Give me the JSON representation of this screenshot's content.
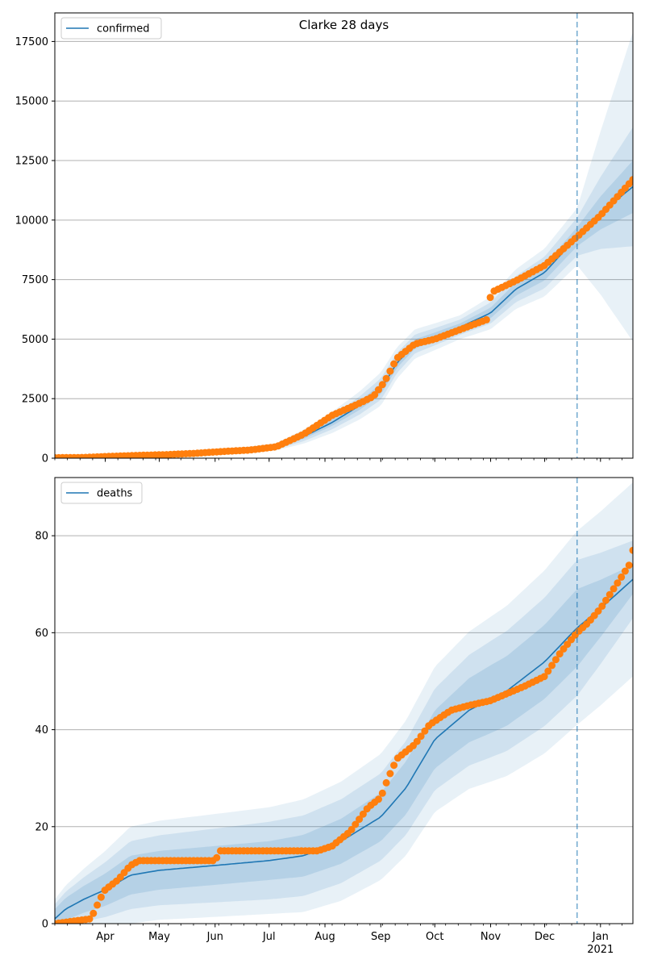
{
  "chart_data": [
    {
      "type": "line",
      "title": "Clarke 28 days",
      "xlabel": "",
      "ylabel": "",
      "legend": {
        "entries": [
          "confirmed"
        ],
        "placement": "top-left"
      },
      "grid": "horizontal",
      "ylim": [
        0,
        18700
      ],
      "yticks": [
        0,
        2500,
        5000,
        7500,
        10000,
        12500,
        15000,
        17500
      ],
      "ytick_labels": [
        "0",
        "2500",
        "5000",
        "7500",
        "10000",
        "12500",
        "15000",
        "17500"
      ],
      "xlim": [
        "2020-03-04",
        "2021-01-19"
      ],
      "forecast_start": "2020-12-19",
      "series": [
        {
          "name": "confirmed",
          "kind": "model line",
          "x": [
            "2020-03-04",
            "2020-03-20",
            "2020-04-05",
            "2020-04-20",
            "2020-05-05",
            "2020-05-20",
            "2020-06-05",
            "2020-06-20",
            "2020-07-05",
            "2020-07-20",
            "2020-08-05",
            "2020-08-20",
            "2020-09-01",
            "2020-09-10",
            "2020-09-20",
            "2020-10-01",
            "2020-10-15",
            "2020-11-01",
            "2020-11-15",
            "2020-12-01",
            "2020-12-19",
            "2021-01-01",
            "2021-01-19"
          ],
          "y": [
            0,
            20,
            60,
            110,
            160,
            210,
            280,
            350,
            480,
            900,
            1500,
            2200,
            2900,
            4000,
            4800,
            5100,
            5500,
            6100,
            7100,
            7800,
            9300,
            10300,
            11400
          ]
        },
        {
          "name": "",
          "kind": "observed points",
          "x": [
            "2020-03-04",
            "2020-03-20",
            "2020-04-05",
            "2020-04-20",
            "2020-05-05",
            "2020-05-20",
            "2020-06-05",
            "2020-06-20",
            "2020-07-05",
            "2020-07-20",
            "2020-08-05",
            "2020-08-20",
            "2020-08-28",
            "2020-09-03",
            "2020-09-10",
            "2020-09-20",
            "2020-10-01",
            "2020-10-15",
            "2020-10-31",
            "2020-11-01",
            "2020-11-15",
            "2020-12-01",
            "2020-12-19",
            "2021-01-01",
            "2021-01-19"
          ],
          "y": [
            20,
            30,
            80,
            120,
            150,
            200,
            280,
            340,
            480,
            1000,
            1800,
            2300,
            2600,
            3200,
            4200,
            4800,
            5000,
            5400,
            5850,
            6950,
            7450,
            8100,
            9300,
            10200,
            11700
          ]
        }
      ],
      "band_half_widths": [
        {
          "x": [
            "2020-03-04",
            "2020-07-05",
            "2020-09-01",
            "2020-10-15",
            "2020-12-19",
            "2021-01-19"
          ],
          "w": [
            40,
            150,
            700,
            500,
            1200,
            6500
          ]
        },
        {
          "x": [
            "2020-03-04",
            "2020-07-05",
            "2020-09-01",
            "2020-10-15",
            "2020-12-19",
            "2021-01-19"
          ],
          "w": [
            25,
            100,
            450,
            320,
            800,
            2500
          ]
        },
        {
          "x": [
            "2020-03-04",
            "2020-07-05",
            "2020-09-01",
            "2020-10-15",
            "2020-12-19",
            "2021-01-19"
          ],
          "w": [
            12,
            50,
            220,
            160,
            400,
            1100
          ]
        }
      ]
    },
    {
      "type": "line",
      "title": "",
      "xlabel": "",
      "ylabel": "",
      "legend": {
        "entries": [
          "deaths"
        ],
        "placement": "top-left"
      },
      "grid": "horizontal",
      "ylim": [
        0,
        92
      ],
      "yticks": [
        0,
        20,
        40,
        60,
        80
      ],
      "ytick_labels": [
        "0",
        "20",
        "40",
        "60",
        "80"
      ],
      "xlim": [
        "2020-03-04",
        "2021-01-19"
      ],
      "forecast_start": "2020-12-19",
      "xtick_labels": [
        {
          "date": "2020-04-01",
          "label": "Apr"
        },
        {
          "date": "2020-05-01",
          "label": "May"
        },
        {
          "date": "2020-06-01",
          "label": "Jun"
        },
        {
          "date": "2020-07-01",
          "label": "Jul"
        },
        {
          "date": "2020-08-01",
          "label": "Aug"
        },
        {
          "date": "2020-09-01",
          "label": "Sep"
        },
        {
          "date": "2020-10-01",
          "label": "Oct"
        },
        {
          "date": "2020-11-01",
          "label": "Nov"
        },
        {
          "date": "2020-12-01",
          "label": "Dec"
        },
        {
          "date": "2021-01-01",
          "label": "Jan\n2021"
        }
      ],
      "series": [
        {
          "name": "deaths",
          "kind": "model line",
          "x": [
            "2020-03-04",
            "2020-03-10",
            "2020-03-20",
            "2020-04-01",
            "2020-04-15",
            "2020-05-01",
            "2020-06-01",
            "2020-07-01",
            "2020-07-20",
            "2020-08-10",
            "2020-09-01",
            "2020-09-15",
            "2020-10-01",
            "2020-10-20",
            "2020-11-10",
            "2020-12-01",
            "2020-12-19",
            "2021-01-01",
            "2021-01-19"
          ],
          "y": [
            1,
            3,
            5,
            7,
            10,
            11,
            12,
            13,
            14,
            17,
            22,
            28,
            38,
            44,
            48,
            54,
            61,
            65,
            71
          ]
        },
        {
          "name": "",
          "kind": "observed points",
          "x": [
            "2020-03-04",
            "2020-03-24",
            "2020-03-29",
            "2020-04-01",
            "2020-04-08",
            "2020-04-15",
            "2020-04-20",
            "2020-05-15",
            "2020-06-01",
            "2020-06-04",
            "2020-06-20",
            "2020-07-10",
            "2020-07-28",
            "2020-08-05",
            "2020-08-15",
            "2020-08-25",
            "2020-09-01",
            "2020-09-05",
            "2020-09-10",
            "2020-09-20",
            "2020-09-28",
            "2020-10-10",
            "2020-10-20",
            "2020-11-01",
            "2020-11-20",
            "2020-12-01",
            "2020-12-10",
            "2020-12-19",
            "2020-12-25",
            "2021-01-01",
            "2021-01-10",
            "2021-01-17",
            "2021-01-19"
          ],
          "y": [
            0,
            1,
            5,
            7,
            9,
            12,
            13,
            13,
            13,
            15,
            15,
            15,
            15,
            16,
            19,
            24,
            26,
            30,
            34,
            37,
            41,
            44,
            45,
            46,
            49,
            51,
            56,
            60,
            62,
            65,
            70,
            74,
            77
          ]
        }
      ],
      "band_half_widths": [
        {
          "x": [
            "2020-03-04",
            "2020-04-15",
            "2020-07-01",
            "2020-09-01",
            "2020-11-01",
            "2020-12-19",
            "2021-01-19"
          ],
          "w": [
            4,
            10,
            11,
            13,
            17,
            20,
            20
          ]
        },
        {
          "x": [
            "2020-03-04",
            "2020-04-15",
            "2020-07-01",
            "2020-09-01",
            "2020-11-01",
            "2020-12-19",
            "2021-01-19"
          ],
          "w": [
            3,
            7,
            8,
            9,
            12,
            14,
            8
          ]
        },
        {
          "x": [
            "2020-03-04",
            "2020-04-15",
            "2020-07-01",
            "2020-09-01",
            "2020-11-01",
            "2020-12-19",
            "2021-01-19"
          ],
          "w": [
            2,
            4,
            4,
            5,
            7,
            8,
            3
          ]
        }
      ]
    }
  ],
  "colors": {
    "line": "#1f77b4",
    "points": "#ff7f0e",
    "band": "#1f77b4",
    "grid": "#b0b0b0",
    "forecast_line": "#1f77b4"
  }
}
